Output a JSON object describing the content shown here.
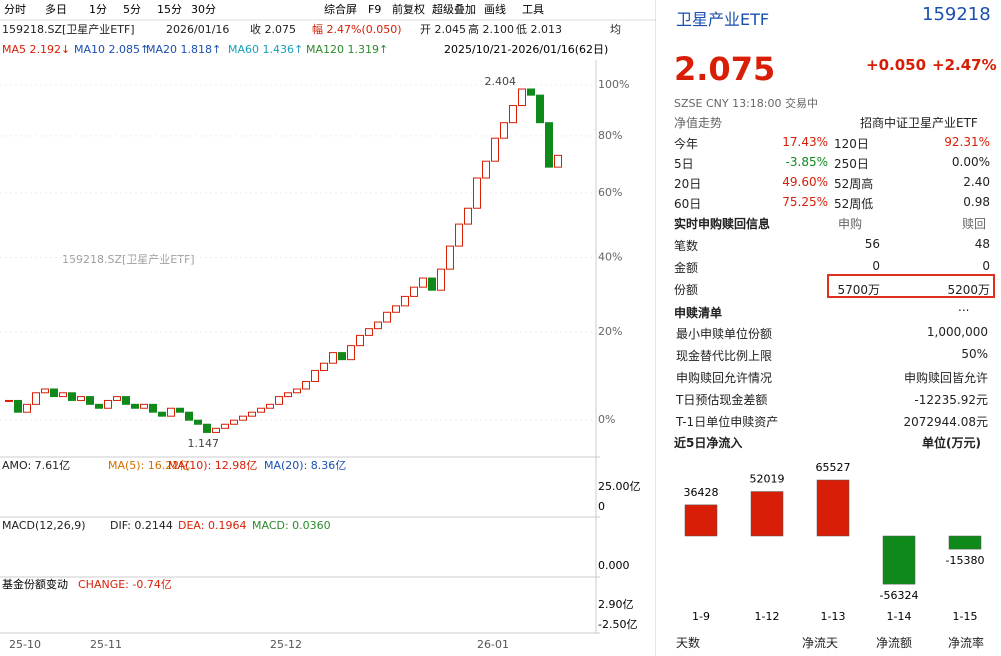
{
  "ui": {
    "toolbar_left": [
      "分时",
      "多日",
      "1分",
      "5分",
      "15分",
      "30分"
    ],
    "toolbar_right": [
      "综合屏",
      "F9",
      "前复权",
      "超级叠加",
      "画线",
      "工具"
    ],
    "info": [
      "159218.SZ[卫星产业ETF]",
      "2026/01/16",
      "收 2.075",
      "幅 2.47%(0.050)",
      "开 2.045",
      "高 2.100",
      "低 2.013",
      "均"
    ],
    "ma": [
      "MA5 2.192↓",
      "MA10 2.085↑",
      "MA20 1.818↑",
      "MA60 1.436↑",
      "MA120 1.319↑"
    ],
    "range": "2025/10/21-2026/01/16(62日)",
    "watermark": "159218.SZ[卫星产业ETF]",
    "amo": [
      "AMO: 7.61亿",
      "MA(5): 16.22亿",
      "MA(10): 12.98亿",
      "MA(20): 8.36亿"
    ],
    "amo_scale": [
      "25.00亿",
      "0"
    ],
    "macd": [
      "MACD(12,26,9)",
      "DIF: 0.2144",
      "DEA: 0.1964",
      "MACD: 0.0360"
    ],
    "macd_scale": [
      "0.000"
    ],
    "fund": [
      "基金份额变动",
      "CHANGE: -0.74亿"
    ],
    "fund_scale": [
      "2.90亿",
      "-2.50亿"
    ],
    "header": {
      "name": "卫星产业ETF",
      "code": "159218",
      "price": "2.075",
      "change": "+0.050",
      "pct": "+2.47%",
      "meta": "SZSE  CNY  13:18:00  交易中"
    },
    "nav": [
      "净值走势",
      "招商中证卫星产业ETF"
    ],
    "stats": [
      [
        "今年",
        "17.43%",
        "120日",
        "92.31%"
      ],
      [
        "5日",
        "-3.85%",
        "250日",
        "0.00%"
      ],
      [
        "20日",
        "49.60%",
        "52周高",
        "2.40"
      ],
      [
        "60日",
        "75.25%",
        "52周低",
        "0.98"
      ]
    ],
    "sub": {
      "title": "实时申购赎回信息",
      "cols": [
        "申购",
        "赎回"
      ],
      "rows": [
        [
          "笔数",
          "56",
          "48"
        ],
        [
          "金额",
          "0",
          "0"
        ],
        [
          "份额",
          "5700万",
          "5200万"
        ]
      ]
    },
    "list": {
      "title": "申赎清单",
      "more": "...",
      "rows": [
        [
          "最小申赎单位份额",
          "1,000,000"
        ],
        [
          "现金替代比例上限",
          "50%"
        ],
        [
          "申购赎回允许情况",
          "申购赎回皆允许"
        ],
        [
          "T日预估现金差额",
          "-12235.92元"
        ],
        [
          "T-1日单位申赎资产",
          "2072944.08元"
        ]
      ]
    },
    "flow": {
      "title": "近5日净流入",
      "unit": "单位(万元)"
    },
    "tabs": [
      "天数",
      "净流天",
      "净流额",
      "净流率"
    ]
  },
  "chart_data": [
    {
      "type": "candlestick",
      "log": true,
      "ylim": [
        1.14,
        2.45
      ],
      "yticks": [
        {
          "value": 1.2,
          "label": "0%"
        },
        {
          "value": 1.44,
          "label": "20%"
        },
        {
          "value": 1.68,
          "label": "40%"
        },
        {
          "value": 1.92,
          "label": "60%"
        },
        {
          "value": 2.16,
          "label": "80%"
        },
        {
          "value": 2.4,
          "label": "100%"
        }
      ],
      "annotations": [
        {
          "value": 2.404,
          "label": "2.404",
          "index": 57
        },
        {
          "value": 1.147,
          "label": "1.147",
          "index": 24
        }
      ],
      "x": [
        "25-10",
        null,
        null,
        null,
        null,
        null,
        null,
        null,
        null,
        "25-11",
        null,
        null,
        null,
        null,
        null,
        null,
        null,
        null,
        null,
        null,
        null,
        null,
        null,
        null,
        null,
        null,
        null,
        null,
        null,
        "25-12",
        null,
        null,
        null,
        null,
        null,
        null,
        null,
        null,
        null,
        null,
        null,
        null,
        null,
        null,
        null,
        null,
        null,
        null,
        null,
        null,
        null,
        null,
        "26-01",
        null,
        null,
        null,
        null,
        null,
        null,
        null,
        null,
        null
      ],
      "close": [
        1.25,
        1.22,
        1.24,
        1.27,
        1.28,
        1.26,
        1.27,
        1.25,
        1.26,
        1.24,
        1.23,
        1.25,
        1.26,
        1.24,
        1.23,
        1.24,
        1.22,
        1.21,
        1.23,
        1.22,
        1.2,
        1.19,
        1.17,
        1.18,
        1.19,
        1.2,
        1.21,
        1.22,
        1.23,
        1.24,
        1.26,
        1.27,
        1.28,
        1.3,
        1.33,
        1.35,
        1.38,
        1.36,
        1.4,
        1.43,
        1.45,
        1.47,
        1.5,
        1.52,
        1.55,
        1.58,
        1.61,
        1.57,
        1.64,
        1.72,
        1.8,
        1.86,
        1.98,
        2.05,
        2.15,
        2.22,
        2.3,
        2.38,
        2.35,
        2.22,
        2.025,
        2.075
      ]
    },
    {
      "type": "bar",
      "categories": [
        "1-9",
        "1-12",
        "1-13",
        "1-14",
        "1-15"
      ],
      "values": [
        36428,
        52019,
        65527,
        -56324,
        -15380
      ],
      "colors": {
        "up": "#d81e06",
        "down": "#0f8a1a"
      }
    }
  ]
}
